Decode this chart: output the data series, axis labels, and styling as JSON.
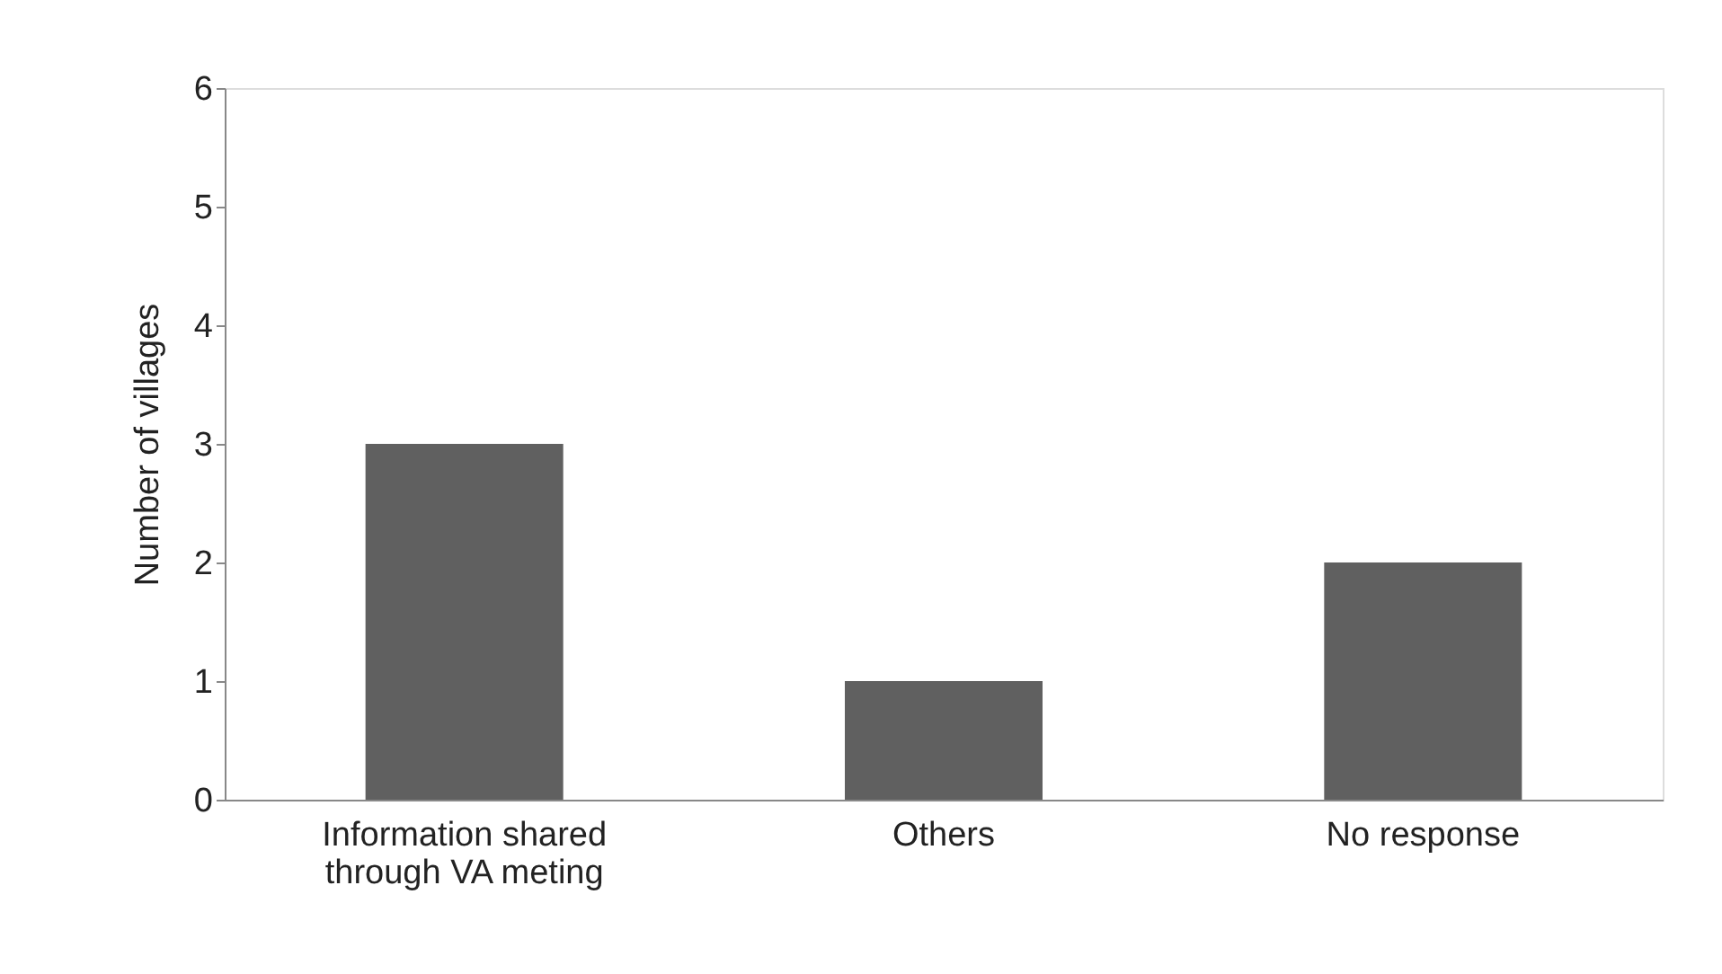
{
  "chart_data": {
    "type": "bar",
    "ylabel": "Number of villages",
    "categories": [
      "Information shared\nthrough VA meting",
      "Others",
      "No response"
    ],
    "values": [
      3,
      1,
      2
    ],
    "color": "#606060",
    "ylim": [
      0,
      6
    ],
    "yticks": [
      0,
      1,
      2,
      3,
      4,
      5,
      6
    ],
    "grid": false
  }
}
